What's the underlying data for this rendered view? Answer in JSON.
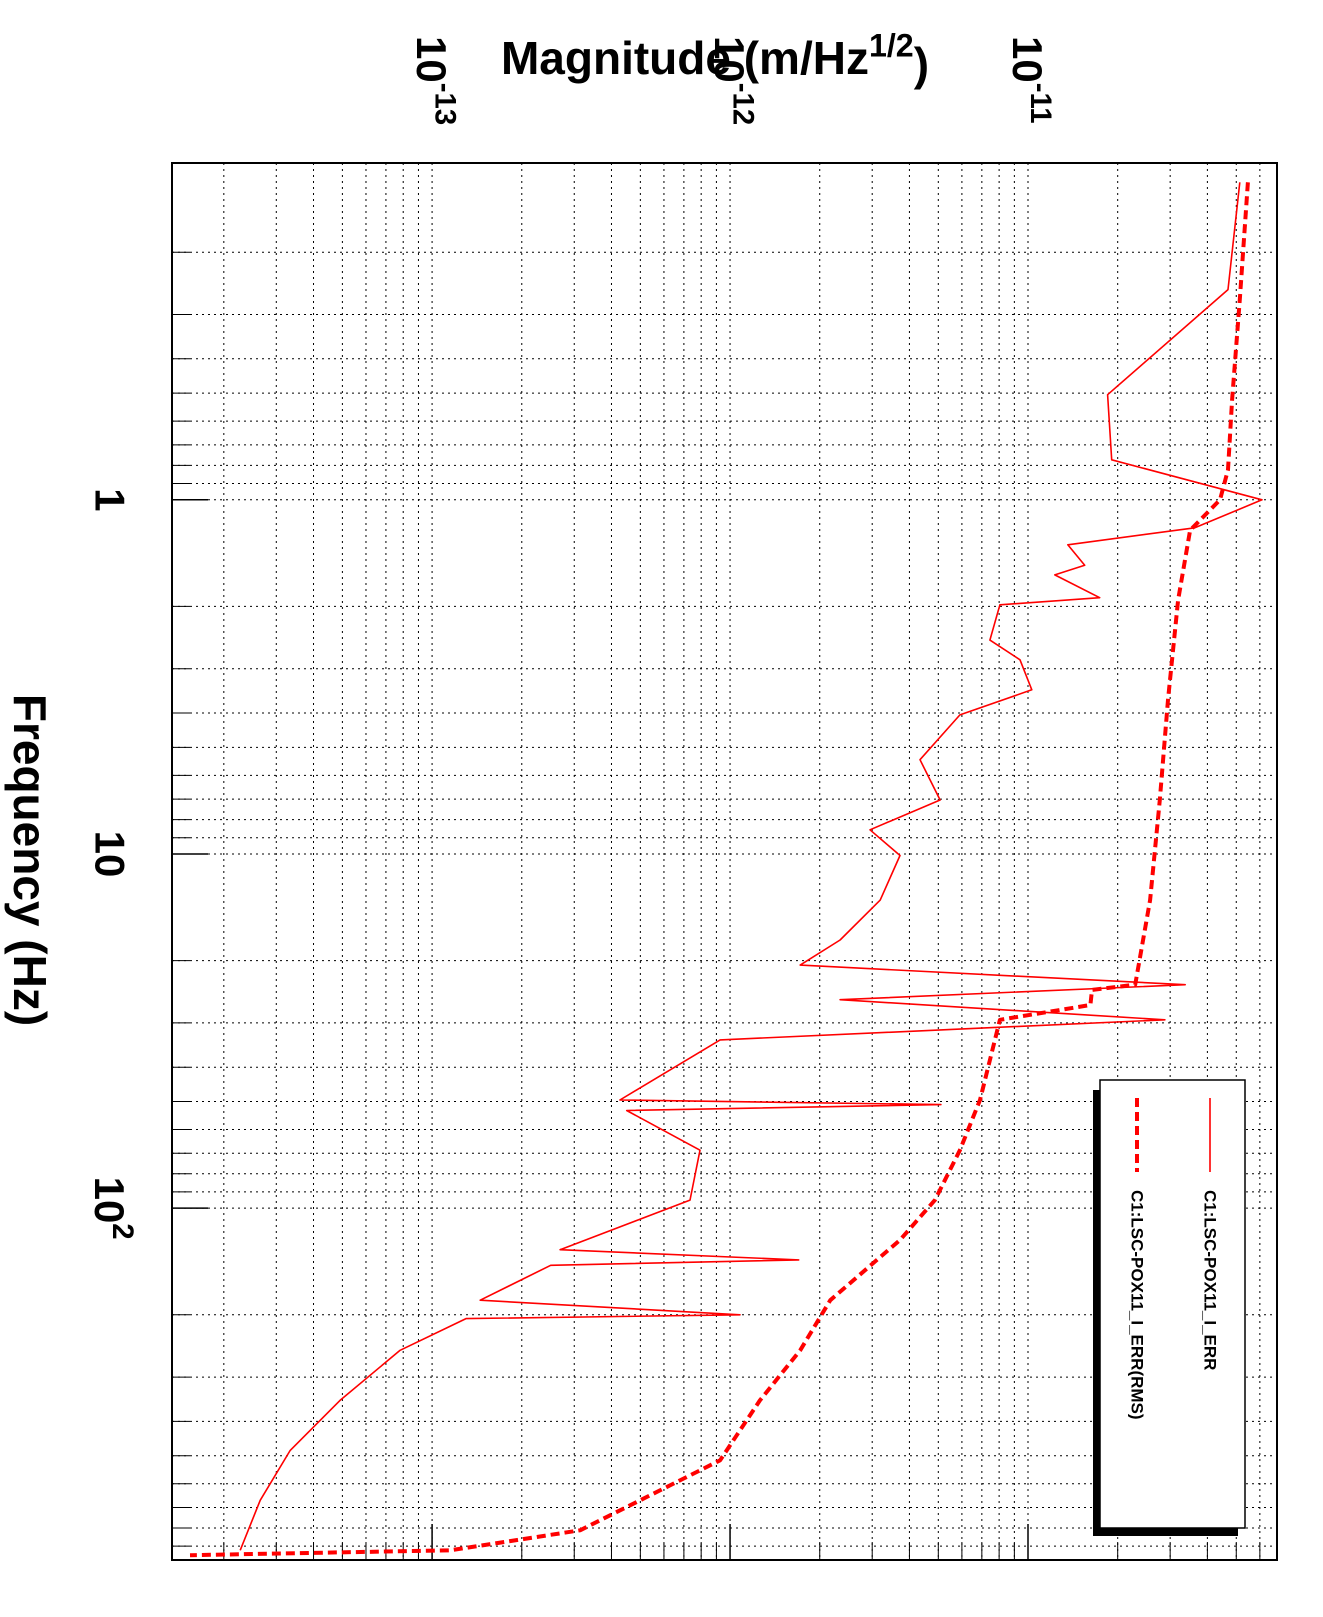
{
  "chart_data": {
    "type": "line",
    "xlabel": "Frequency (Hz)",
    "ylabel": "Magnitude (m/Hz^{1/2})",
    "log_x": true,
    "log_y": true,
    "grid": true,
    "xlim": [
      0.112,
      985
    ],
    "ylim": [
      1.34e-14,
      6.85e-11
    ],
    "xticks": [
      1,
      10,
      {
        "value": 100,
        "label": "10^{2}"
      }
    ],
    "yticks": [
      {
        "value": 1e-13,
        "label": "10^{-13}"
      },
      {
        "value": 1e-12,
        "label": "10^{-12}"
      },
      {
        "value": 1e-11,
        "label": "10^{-11}"
      }
    ],
    "series": [
      {
        "name": "C1:LSC-POX11_I_ERR",
        "color": "#ff0000",
        "dashed": false,
        "x": [
          0.127,
          0.255,
          0.505,
          0.771,
          1.0,
          1.2,
          1.34,
          1.53,
          1.63,
          1.89,
          1.98,
          2.49,
          2.83,
          3.44,
          4.05,
          5.42,
          7.04,
          8.55,
          10.1,
          13.5,
          17.5,
          20.6,
          23.4,
          25.8,
          29.4,
          33.5,
          49.5,
          51,
          53,
          68.6,
          94.9,
          131,
          140,
          145,
          182,
          200,
          205,
          252,
          349,
          483,
          668,
          925
        ],
        "values": [
          5.14e-11,
          4.69e-11,
          1.85e-11,
          1.91e-11,
          6.1e-11,
          3.63e-11,
          1.36e-11,
          1.55e-11,
          1.23e-11,
          1.74e-11,
          8.05e-12,
          7.45e-12,
          9.4e-12,
          1.03e-11,
          5.91e-12,
          4.34e-12,
          5.07e-12,
          2.95e-12,
          3.72e-12,
          3.19e-12,
          2.34e-12,
          1.72e-12,
          3.37e-11,
          2.34e-12,
          2.88e-11,
          9.26e-13,
          4.27e-13,
          5.1e-12,
          4.5e-13,
          7.93e-13,
          7.34e-13,
          2.69e-13,
          1.7e-12,
          2.5e-13,
          1.45e-13,
          1.08e-12,
          1.3e-13,
          7.81e-14,
          4.91e-14,
          3.34e-14,
          2.65e-14,
          2.27e-14
        ]
      },
      {
        "name": "C1:LSC-POX11_I_ERR(RMS)",
        "color": "#ff0000",
        "dashed": true,
        "x": [
          0.127,
          0.272,
          0.522,
          0.823,
          1.0,
          1.22,
          1.92,
          3.67,
          7.04,
          13.5,
          23.4,
          24.2,
          26.7,
          29.4,
          49.5,
          68.6,
          94.9,
          123,
          182,
          252,
          349,
          515,
          668,
          812,
          925,
          955
        ],
        "values": [
          5.47e-11,
          5.14e-11,
          4.84e-11,
          4.69e-11,
          4.41e-11,
          3.5e-11,
          3.19e-11,
          2.95e-11,
          2.77e-11,
          2.57e-11,
          2.29e-11,
          1.64e-11,
          1.62e-11,
          8.05e-12,
          6.9e-12,
          5.91e-12,
          4.87e-12,
          3.72e-12,
          2.17e-12,
          1.72e-12,
          1.26e-12,
          9.26e-13,
          4.99e-13,
          3.14e-13,
          1.15e-13,
          1.54e-14
        ]
      }
    ]
  }
}
